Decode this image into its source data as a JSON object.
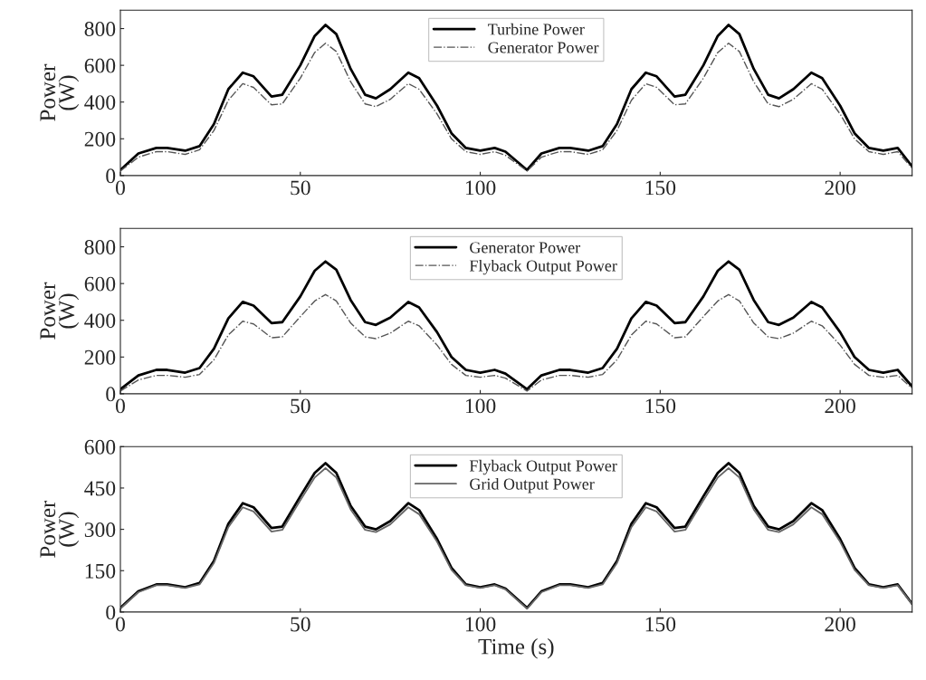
{
  "chart_data": [
    {
      "type": "line",
      "ylabel": "Power\n(W)",
      "x": [
        0,
        5,
        10,
        13,
        18,
        22,
        26,
        30,
        34,
        37,
        42,
        45,
        50,
        54,
        57,
        60,
        64,
        68,
        71,
        75,
        80,
        83,
        88,
        92,
        96,
        100,
        104,
        107,
        113,
        117,
        122,
        125,
        130,
        134,
        138,
        142,
        146,
        149,
        154,
        157,
        162,
        166,
        169,
        172,
        176,
        180,
        183,
        187,
        192,
        195,
        200,
        204,
        208,
        212,
        216,
        220
      ],
      "xlim": [
        0,
        220
      ],
      "xticks": [
        0,
        50,
        100,
        150,
        200
      ],
      "ylim": [
        0,
        900
      ],
      "yticks": [
        0,
        200,
        400,
        600,
        800
      ],
      "legend": "top",
      "series": [
        {
          "name": "Turbine Power",
          "color": "#000000",
          "line_style": "solid",
          "values": [
            30,
            120,
            150,
            150,
            135,
            160,
            280,
            470,
            560,
            540,
            430,
            440,
            600,
            760,
            820,
            770,
            580,
            440,
            420,
            470,
            560,
            530,
            380,
            230,
            150,
            135,
            150,
            130,
            30,
            120,
            150,
            150,
            135,
            160,
            280,
            470,
            560,
            540,
            430,
            440,
            600,
            760,
            820,
            770,
            580,
            440,
            420,
            470,
            560,
            530,
            380,
            230,
            150,
            135,
            150,
            50
          ]
        },
        {
          "name": "Generator Power",
          "color": "#555555",
          "line_style": "dashdot",
          "values": [
            25,
            100,
            130,
            130,
            115,
            140,
            245,
            410,
            500,
            480,
            385,
            390,
            530,
            670,
            720,
            675,
            510,
            390,
            375,
            415,
            500,
            470,
            335,
            200,
            130,
            115,
            130,
            110,
            25,
            100,
            130,
            130,
            115,
            140,
            245,
            410,
            500,
            480,
            385,
            390,
            530,
            670,
            720,
            675,
            510,
            390,
            375,
            415,
            500,
            470,
            335,
            200,
            130,
            115,
            130,
            40
          ]
        }
      ]
    },
    {
      "type": "line",
      "ylabel": "Power\n(W)",
      "x": [
        0,
        5,
        10,
        13,
        18,
        22,
        26,
        30,
        34,
        37,
        42,
        45,
        50,
        54,
        57,
        60,
        64,
        68,
        71,
        75,
        80,
        83,
        88,
        92,
        96,
        100,
        104,
        107,
        113,
        117,
        122,
        125,
        130,
        134,
        138,
        142,
        146,
        149,
        154,
        157,
        162,
        166,
        169,
        172,
        176,
        180,
        183,
        187,
        192,
        195,
        200,
        204,
        208,
        212,
        216,
        220
      ],
      "xlim": [
        0,
        220
      ],
      "xticks": [
        0,
        50,
        100,
        150,
        200
      ],
      "ylim": [
        0,
        900
      ],
      "yticks": [
        0,
        200,
        400,
        600,
        800
      ],
      "legend": "top",
      "series": [
        {
          "name": "Generator Power",
          "color": "#000000",
          "line_style": "solid",
          "values": [
            25,
            100,
            130,
            130,
            115,
            140,
            245,
            410,
            500,
            480,
            385,
            390,
            530,
            670,
            720,
            675,
            510,
            390,
            375,
            415,
            500,
            470,
            335,
            200,
            130,
            115,
            130,
            110,
            25,
            100,
            130,
            130,
            115,
            140,
            245,
            410,
            500,
            480,
            385,
            390,
            530,
            670,
            720,
            675,
            510,
            390,
            375,
            415,
            500,
            470,
            335,
            200,
            130,
            115,
            130,
            40
          ]
        },
        {
          "name": "Flyback Output Power",
          "color": "#555555",
          "line_style": "dashdot",
          "values": [
            15,
            75,
            100,
            100,
            90,
            105,
            185,
            320,
            395,
            380,
            305,
            310,
            420,
            505,
            540,
            505,
            385,
            310,
            300,
            330,
            395,
            370,
            265,
            160,
            100,
            90,
            100,
            85,
            15,
            75,
            100,
            100,
            90,
            105,
            185,
            320,
            395,
            380,
            305,
            310,
            420,
            505,
            540,
            505,
            385,
            310,
            300,
            330,
            395,
            370,
            265,
            160,
            100,
            90,
            100,
            30
          ]
        }
      ]
    },
    {
      "type": "line",
      "xlabel": "Time (s)",
      "ylabel": "Power\n(W)",
      "x": [
        0,
        5,
        10,
        13,
        18,
        22,
        26,
        30,
        34,
        37,
        42,
        45,
        50,
        54,
        57,
        60,
        64,
        68,
        71,
        75,
        80,
        83,
        88,
        92,
        96,
        100,
        104,
        107,
        113,
        117,
        122,
        125,
        130,
        134,
        138,
        142,
        146,
        149,
        154,
        157,
        162,
        166,
        169,
        172,
        176,
        180,
        183,
        187,
        192,
        195,
        200,
        204,
        208,
        212,
        216,
        220
      ],
      "xlim": [
        0,
        220
      ],
      "xticks": [
        0,
        50,
        100,
        150,
        200
      ],
      "ylim": [
        0,
        600
      ],
      "yticks": [
        0,
        150,
        300,
        450,
        600
      ],
      "legend": "top",
      "series": [
        {
          "name": "Flyback Output Power",
          "color": "#000000",
          "line_style": "solid",
          "values": [
            15,
            75,
            100,
            100,
            90,
            105,
            185,
            320,
            395,
            380,
            305,
            310,
            420,
            505,
            540,
            505,
            385,
            310,
            300,
            330,
            395,
            370,
            265,
            160,
            100,
            90,
            100,
            85,
            15,
            75,
            100,
            100,
            90,
            105,
            185,
            320,
            395,
            380,
            305,
            310,
            420,
            505,
            540,
            505,
            385,
            310,
            300,
            330,
            395,
            370,
            265,
            160,
            100,
            90,
            100,
            30
          ]
        },
        {
          "name": "Grid Output Power",
          "color": "#666666",
          "line_style": "solid",
          "values": [
            12,
            72,
            97,
            97,
            87,
            100,
            178,
            308,
            380,
            365,
            292,
            298,
            405,
            488,
            522,
            488,
            372,
            298,
            290,
            318,
            380,
            355,
            255,
            153,
            97,
            87,
            97,
            82,
            12,
            72,
            97,
            97,
            87,
            100,
            178,
            308,
            380,
            365,
            292,
            298,
            405,
            488,
            522,
            488,
            372,
            298,
            290,
            318,
            380,
            355,
            255,
            153,
            97,
            87,
            97,
            28
          ]
        }
      ]
    }
  ]
}
